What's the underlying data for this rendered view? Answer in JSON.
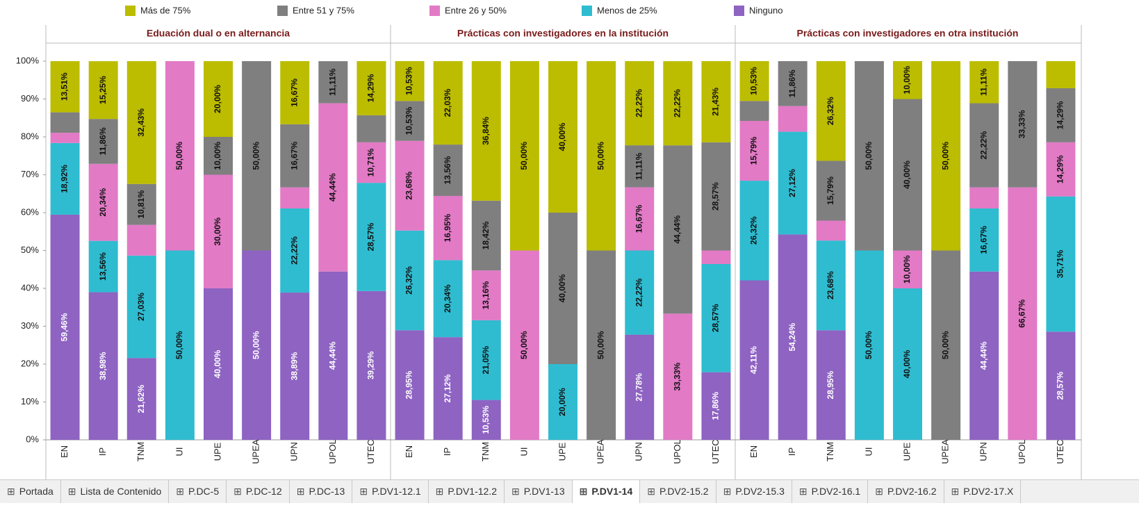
{
  "chart_data": {
    "type": "bar",
    "stacked": true,
    "categories": [
      "EN",
      "IP",
      "TNM",
      "UI",
      "UPE",
      "UPEA",
      "UPN",
      "UPOL",
      "UTEC"
    ],
    "ylim": [
      0,
      100
    ],
    "yticks": [
      {
        "value": 0,
        "label": "0%"
      },
      {
        "value": 10,
        "label": "10%"
      },
      {
        "value": 20,
        "label": "20%"
      },
      {
        "value": 30,
        "label": "30%"
      },
      {
        "value": 40,
        "label": "40%"
      },
      {
        "value": 50,
        "label": "50%"
      },
      {
        "value": 60,
        "label": "60%"
      },
      {
        "value": 70,
        "label": "70%"
      },
      {
        "value": 80,
        "label": "80%"
      },
      {
        "value": 90,
        "label": "90%"
      },
      {
        "value": 100,
        "label": "100%"
      }
    ],
    "series": [
      {
        "name": "Ninguno",
        "color": "#8e63c2"
      },
      {
        "name": "Menos de 25%",
        "color": "#2fbcd0"
      },
      {
        "name": "Entre 26 y 50%",
        "color": "#e27ac6"
      },
      {
        "name": "Entre 51 y 75%",
        "color": "#7f7f7f"
      },
      {
        "name": "Más de 75%",
        "color": "#bcbc00"
      }
    ],
    "panels": [
      {
        "title": "Eduación dual o en alternancia",
        "series": [
          {
            "values": [
              59.46,
              38.98,
              21.62,
              0,
              40,
              50,
              38.89,
              44.44,
              39.29
            ],
            "value_labels": [
              "59,46%",
              "38,98%",
              "21,62%",
              null,
              "40,00%",
              "50,00%",
              "38,89%",
              "44,44%",
              "39,29%"
            ]
          },
          {
            "values": [
              18.92,
              13.56,
              27.03,
              50,
              0,
              0,
              22.22,
              0,
              28.57
            ],
            "value_labels": [
              "18,92%",
              "13,56%",
              "27,03%",
              "50,00%",
              null,
              null,
              "22,22%",
              null,
              "28,57%"
            ]
          },
          {
            "values": [
              2.7,
              20.34,
              8.11,
              50,
              30,
              0,
              5.56,
              44.44,
              10.71
            ],
            "value_labels": [
              null,
              "20,34%",
              null,
              "50,00%",
              "30,00%",
              null,
              null,
              "44,44%",
              "10,71%"
            ]
          },
          {
            "values": [
              5.41,
              11.86,
              10.81,
              0,
              10,
              50,
              16.67,
              11.11,
              7.14
            ],
            "value_labels": [
              null,
              "11,86%",
              "10,81%",
              null,
              "10,00%",
              "50,00%",
              "16,67%",
              "11,11%",
              null
            ]
          },
          {
            "values": [
              13.51,
              15.25,
              32.43,
              0,
              20,
              0,
              16.67,
              0,
              14.29
            ],
            "value_labels": [
              "13,51%",
              "15,25%",
              "32,43%",
              null,
              "20,00%",
              null,
              "16,67%",
              null,
              "14,29%"
            ]
          }
        ]
      },
      {
        "title": "Prácticas con investigadores en la institución",
        "series": [
          {
            "values": [
              28.95,
              27.12,
              10.53,
              0,
              0,
              0,
              27.78,
              0,
              17.86
            ],
            "value_labels": [
              "28,95%",
              "27,12%",
              "10,53%",
              null,
              null,
              null,
              "27,78%",
              null,
              "17,86%"
            ]
          },
          {
            "values": [
              26.32,
              20.34,
              21.05,
              0,
              20,
              0,
              22.22,
              0,
              28.57
            ],
            "value_labels": [
              "26,32%",
              "20,34%",
              "21,05%",
              null,
              "20,00%",
              null,
              "22,22%",
              null,
              "28,57%"
            ]
          },
          {
            "values": [
              23.68,
              16.95,
              13.16,
              50,
              0,
              0,
              16.67,
              33.33,
              3.57
            ],
            "value_labels": [
              "23,68%",
              "16,95%",
              "13,16%",
              "50,00%",
              null,
              null,
              "16,67%",
              "33,33%",
              null
            ]
          },
          {
            "values": [
              10.53,
              13.56,
              18.42,
              0,
              40,
              50,
              11.11,
              44.44,
              28.57
            ],
            "value_labels": [
              "10,53%",
              "13,56%",
              "18,42%",
              null,
              "40,00%",
              "50,00%",
              "11,11%",
              "44,44%",
              "28,57%"
            ]
          },
          {
            "values": [
              10.53,
              22.03,
              36.84,
              50,
              40,
              50,
              22.22,
              22.22,
              21.43
            ],
            "value_labels": [
              "10,53%",
              "22,03%",
              "36,84%",
              "50,00%",
              "40,00%",
              "50,00%",
              "22,22%",
              "22,22%",
              "21,43%"
            ]
          }
        ]
      },
      {
        "title": "Prácticas con investigadores en otra institución",
        "series": [
          {
            "values": [
              42.11,
              54.24,
              28.95,
              0,
              0,
              0,
              44.44,
              0,
              28.57
            ],
            "value_labels": [
              "42,11%",
              "54,24%",
              "28,95%",
              null,
              null,
              null,
              "44,44%",
              null,
              "28,57%"
            ]
          },
          {
            "values": [
              26.32,
              27.12,
              23.68,
              50,
              40,
              0,
              16.67,
              0,
              35.71
            ],
            "value_labels": [
              "26,32%",
              "27,12%",
              "23,68%",
              "50,00%",
              "40,00%",
              null,
              "16,67%",
              null,
              "35,71%"
            ]
          },
          {
            "values": [
              15.79,
              6.78,
              5.26,
              0,
              10,
              0,
              5.56,
              66.67,
              14.29
            ],
            "value_labels": [
              "15,79%",
              null,
              null,
              null,
              "10,00%",
              null,
              null,
              "66,67%",
              "14,29%"
            ]
          },
          {
            "values": [
              5.26,
              11.86,
              15.79,
              50,
              40,
              50,
              22.22,
              33.33,
              14.29
            ],
            "value_labels": [
              null,
              "11,86%",
              "15,79%",
              "50,00%",
              "40,00%",
              "50,00%",
              "22,22%",
              "33,33%",
              "14,29%"
            ]
          },
          {
            "values": [
              10.53,
              0,
              26.32,
              0,
              10,
              50,
              11.11,
              0,
              7.14
            ],
            "value_labels": [
              "10,53%",
              null,
              "26,32%",
              null,
              "10,00%",
              "50,00%",
              "11,11%",
              null,
              null
            ]
          }
        ]
      }
    ]
  },
  "tabs": {
    "items": [
      "Portada",
      "Lista de Contenido",
      "P.DC-5",
      "P.DC-12",
      "P.DC-13",
      "P.DV1-12.1",
      "P.DV1-12.2",
      "P.DV1-13",
      "P.DV1-14",
      "P.DV2-15.2",
      "P.DV2-15.3",
      "P.DV2-16.1",
      "P.DV2-16.2",
      "P.DV2-17.X"
    ],
    "active": 8
  }
}
